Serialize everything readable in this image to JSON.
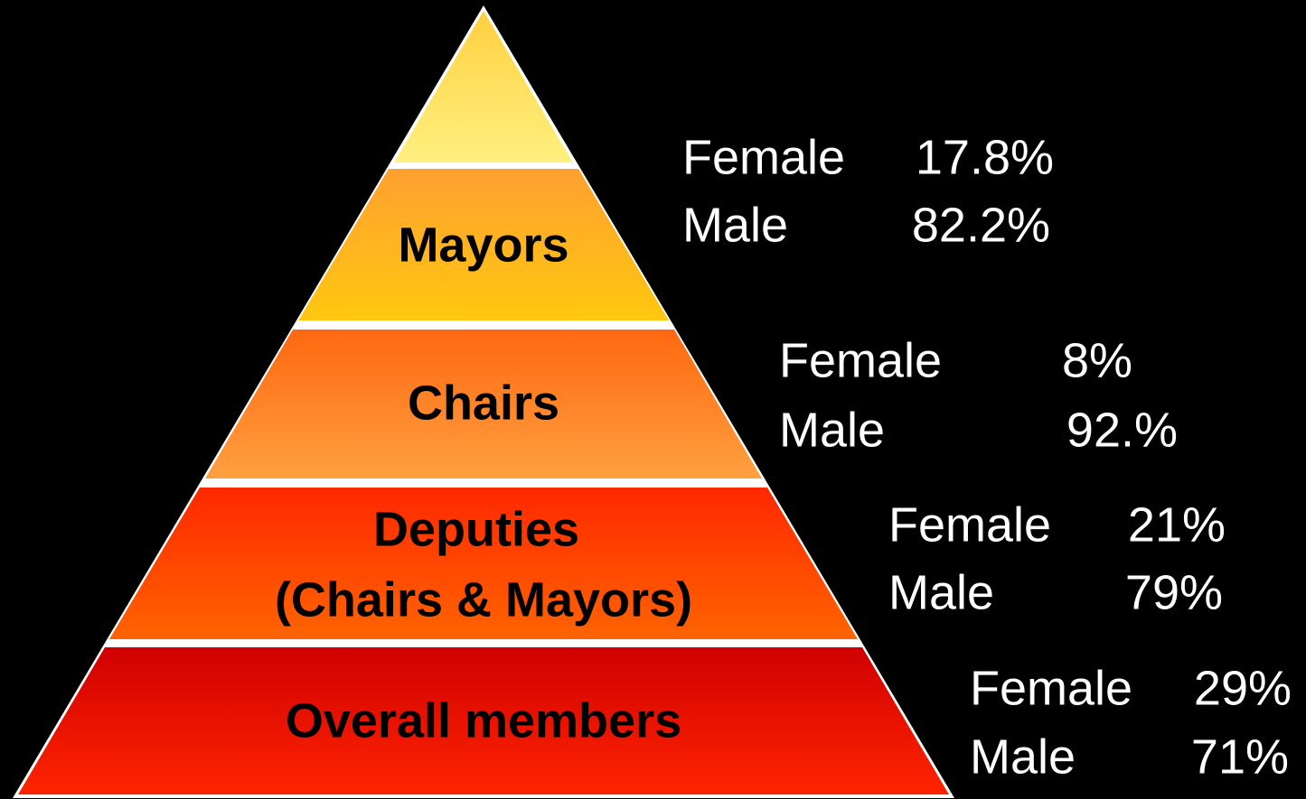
{
  "levels": [
    {
      "label": [
        "Mayors"
      ],
      "female_label": "Female",
      "female_value": "17.8%",
      "male_label": "Male",
      "male_value": "82.2%"
    },
    {
      "label": [
        "Chairs"
      ],
      "female_label": "Female",
      "female_value": "8%",
      "male_label": "Male",
      "male_value": "92.%"
    },
    {
      "label": [
        "Deputies",
        "(Chairs & Mayors)"
      ],
      "female_label": "Female",
      "female_value": "21%",
      "male_label": "Male",
      "male_value": "79%"
    },
    {
      "label": [
        "Overall members"
      ],
      "female_label": "Female",
      "female_value": "29%",
      "male_label": "Male",
      "male_value": "71%"
    }
  ]
}
